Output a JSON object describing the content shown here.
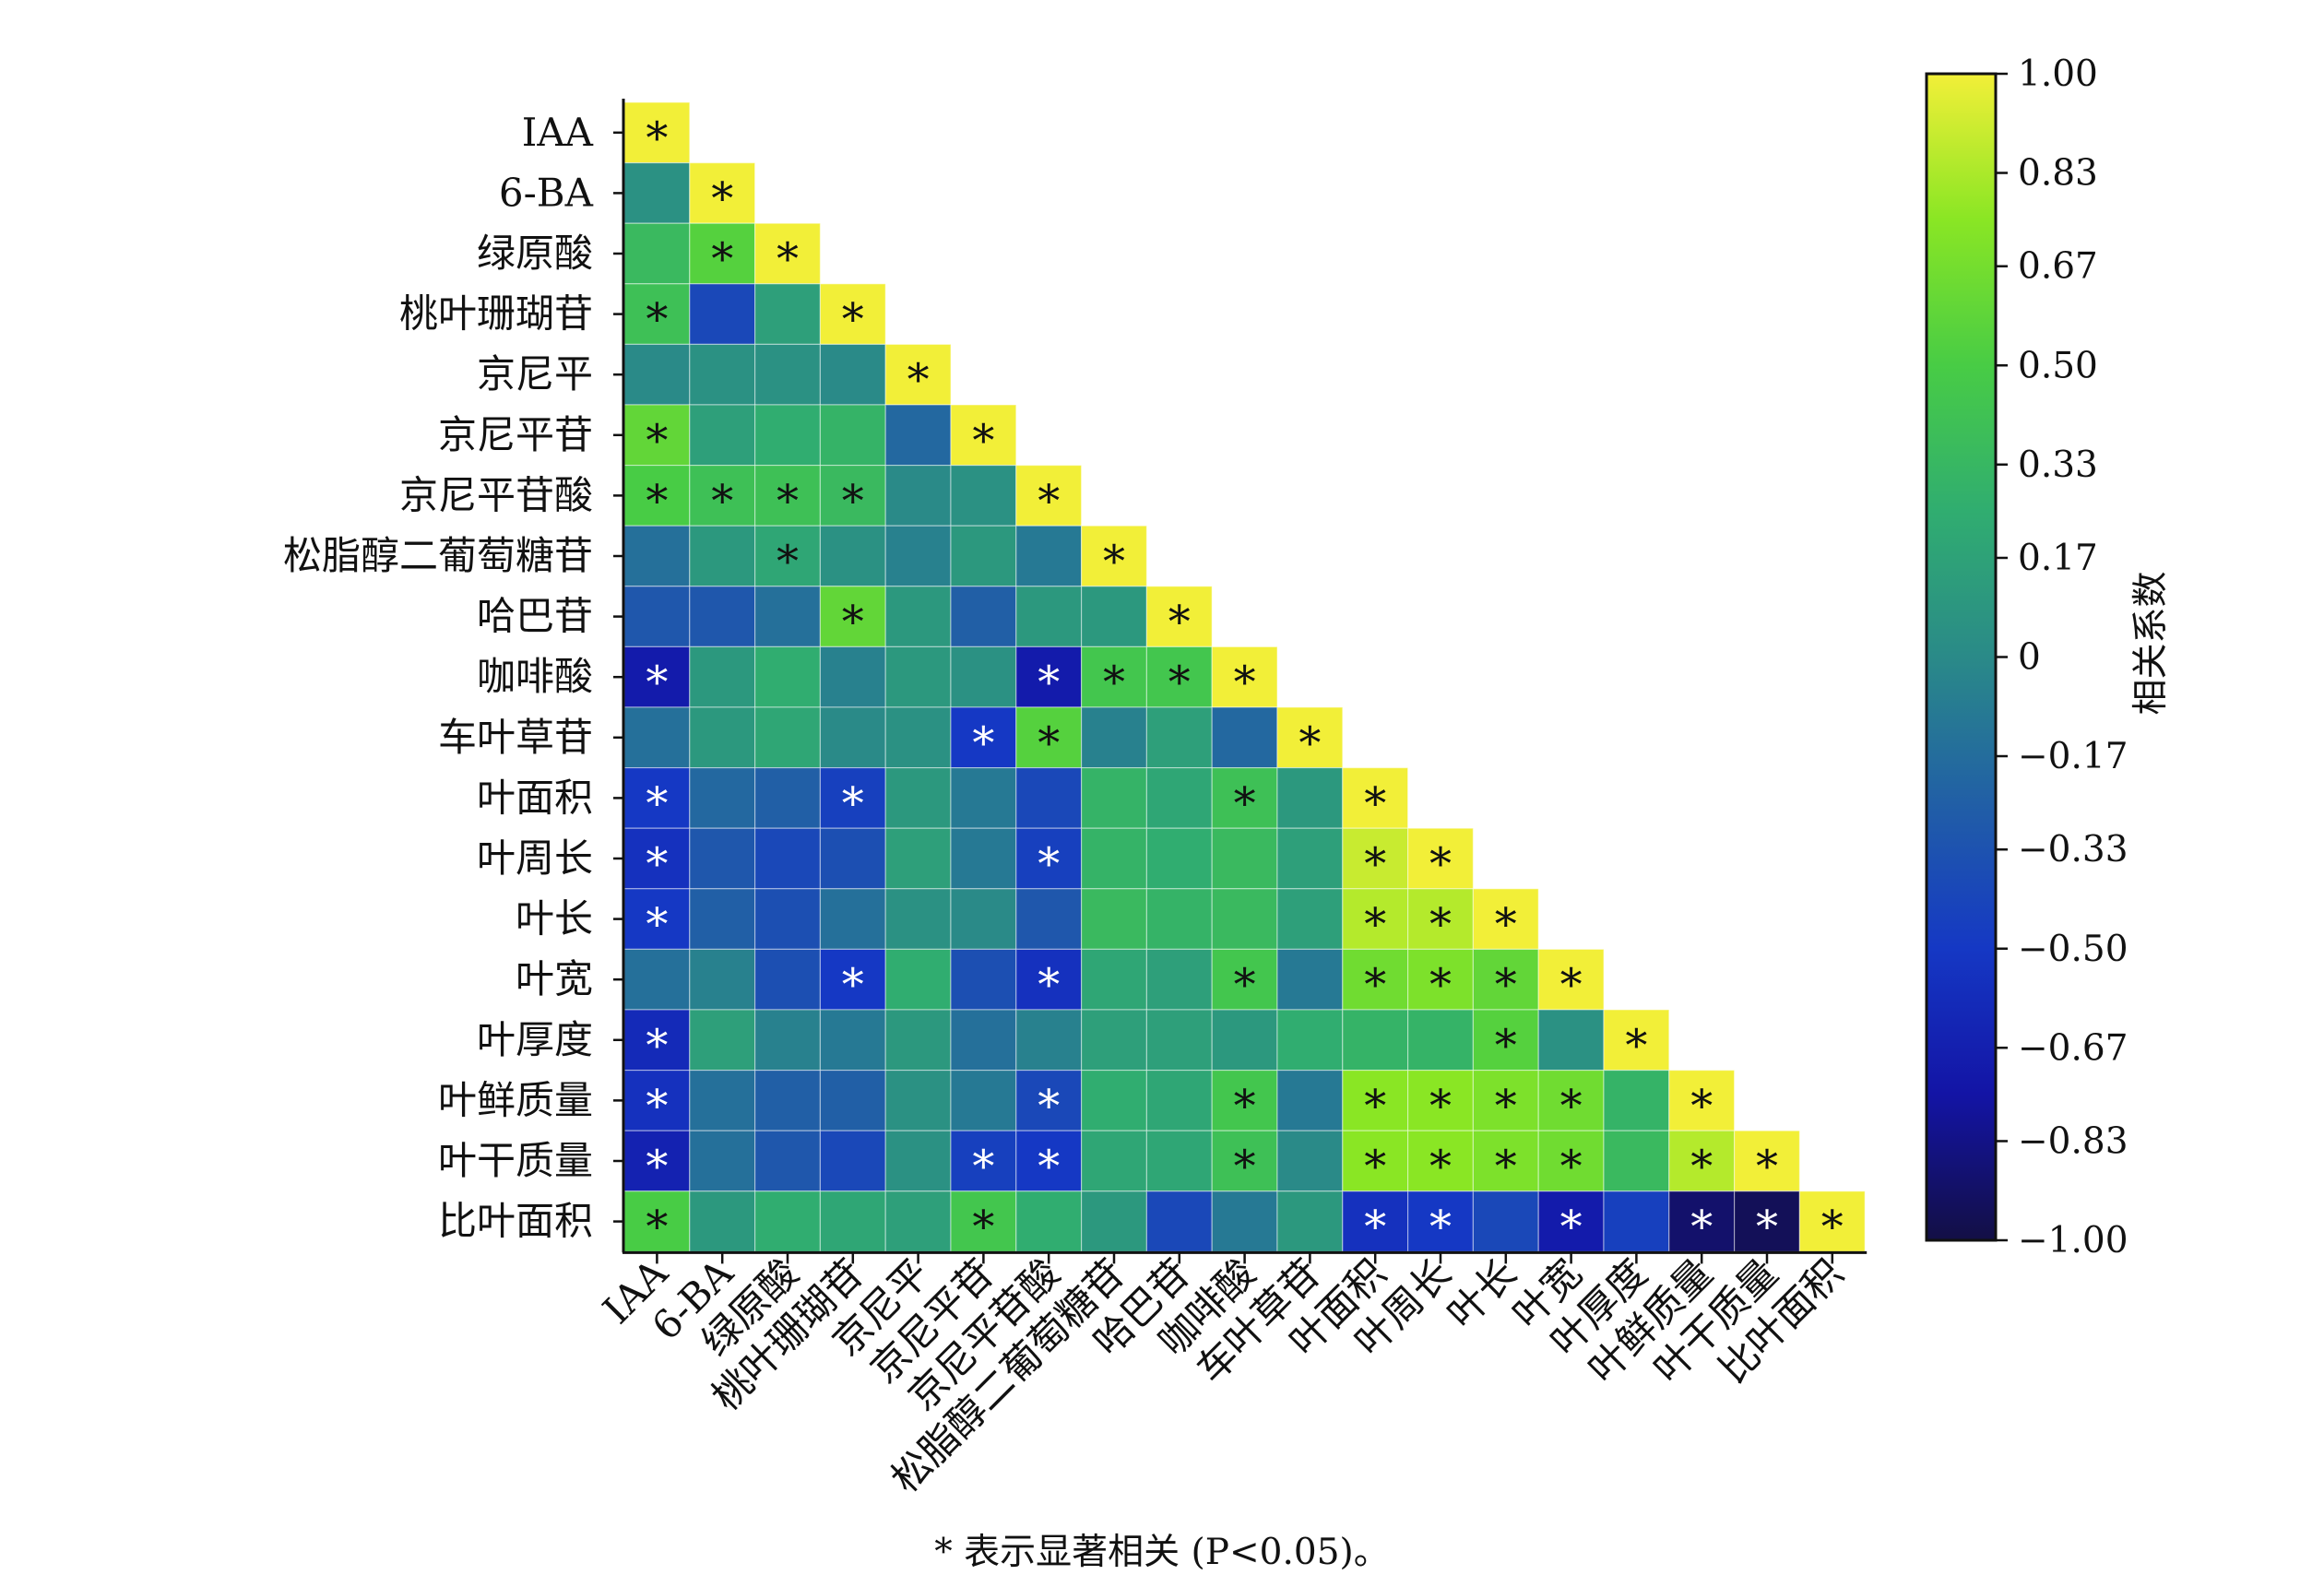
{
  "chart_data": {
    "type": "heatmap",
    "title": "",
    "variables": [
      "IAA",
      "6-BA",
      "绿原酸",
      "桃叶珊瑚苷",
      "京尼平",
      "京尼平苷",
      "京尼平苷酸",
      "松脂醇二葡萄糖苷",
      "哈巴苷",
      "咖啡酸",
      "车叶草苷",
      "叶面积",
      "叶周长",
      "叶长",
      "叶宽",
      "叶厚度",
      "叶鲜质量",
      "叶干质量",
      "比叶面积"
    ],
    "matrix": [
      [
        1.0
      ],
      [
        0.05,
        1.0
      ],
      [
        0.35,
        0.55,
        1.0
      ],
      [
        0.4,
        -0.4,
        0.15,
        1.0
      ],
      [
        0.0,
        0.05,
        0.05,
        0.0,
        1.0
      ],
      [
        0.6,
        0.15,
        0.25,
        0.3,
        -0.2,
        1.0
      ],
      [
        0.5,
        0.4,
        0.4,
        0.35,
        0.0,
        0.05,
        1.0
      ],
      [
        -0.15,
        0.1,
        0.2,
        0.05,
        -0.05,
        0.1,
        -0.1,
        1.0
      ],
      [
        -0.3,
        -0.3,
        -0.15,
        0.6,
        0.1,
        -0.25,
        0.1,
        0.1,
        1.0
      ],
      [
        -0.7,
        0.1,
        0.25,
        -0.05,
        0.1,
        0.05,
        -0.7,
        0.45,
        0.45,
        1.0
      ],
      [
        -0.15,
        0.1,
        0.2,
        0.0,
        0.05,
        -0.5,
        0.55,
        -0.05,
        0.15,
        -0.2,
        1.0
      ],
      [
        -0.5,
        -0.2,
        -0.25,
        -0.45,
        0.1,
        -0.1,
        -0.4,
        0.3,
        0.2,
        0.4,
        0.1,
        1.0
      ],
      [
        -0.55,
        -0.3,
        -0.4,
        -0.35,
        0.15,
        -0.1,
        -0.45,
        0.3,
        0.25,
        0.35,
        0.15,
        0.9,
        1.0
      ],
      [
        -0.5,
        -0.25,
        -0.35,
        -0.15,
        0.05,
        0.0,
        -0.3,
        0.35,
        0.3,
        0.35,
        0.15,
        0.85,
        0.85,
        1.0
      ],
      [
        -0.15,
        -0.05,
        -0.35,
        -0.5,
        0.25,
        -0.35,
        -0.55,
        0.2,
        0.15,
        0.45,
        -0.1,
        0.65,
        0.7,
        0.6,
        1.0
      ],
      [
        -0.6,
        0.15,
        -0.05,
        -0.1,
        0.1,
        -0.15,
        -0.05,
        0.15,
        0.15,
        0.1,
        0.25,
        0.3,
        0.3,
        0.55,
        0.05,
        1.0
      ],
      [
        -0.55,
        -0.15,
        -0.25,
        -0.25,
        0.05,
        -0.1,
        -0.4,
        0.25,
        0.2,
        0.45,
        -0.1,
        0.75,
        0.75,
        0.7,
        0.65,
        0.3,
        1.0
      ],
      [
        -0.65,
        -0.15,
        -0.3,
        -0.4,
        0.05,
        -0.45,
        -0.5,
        0.2,
        0.2,
        0.4,
        0.0,
        0.75,
        0.75,
        0.7,
        0.65,
        0.35,
        0.85,
        1.0
      ],
      [
        0.5,
        0.1,
        0.25,
        0.2,
        0.15,
        0.45,
        0.25,
        0.1,
        -0.4,
        -0.1,
        0.1,
        -0.55,
        -0.5,
        -0.4,
        -0.7,
        -0.45,
        -0.9,
        -0.95,
        1.0
      ]
    ],
    "significant": [
      [
        1
      ],
      [
        0,
        1
      ],
      [
        0,
        1,
        1
      ],
      [
        1,
        0,
        0,
        1
      ],
      [
        0,
        0,
        0,
        0,
        1
      ],
      [
        1,
        0,
        0,
        0,
        0,
        1
      ],
      [
        1,
        1,
        1,
        1,
        0,
        0,
        1
      ],
      [
        0,
        0,
        1,
        0,
        0,
        0,
        0,
        1
      ],
      [
        0,
        0,
        0,
        1,
        0,
        0,
        0,
        0,
        1
      ],
      [
        1,
        0,
        0,
        0,
        0,
        0,
        1,
        1,
        1,
        1
      ],
      [
        0,
        0,
        0,
        0,
        0,
        1,
        1,
        0,
        0,
        0,
        1
      ],
      [
        1,
        0,
        0,
        1,
        0,
        0,
        0,
        0,
        0,
        1,
        0,
        1
      ],
      [
        1,
        0,
        0,
        0,
        0,
        0,
        1,
        0,
        0,
        0,
        0,
        1,
        1
      ],
      [
        1,
        0,
        0,
        0,
        0,
        0,
        0,
        0,
        0,
        0,
        0,
        1,
        1,
        1
      ],
      [
        0,
        0,
        0,
        1,
        0,
        0,
        1,
        0,
        0,
        1,
        0,
        1,
        1,
        1,
        1
      ],
      [
        1,
        0,
        0,
        0,
        0,
        0,
        0,
        0,
        0,
        0,
        0,
        0,
        0,
        1,
        0,
        1
      ],
      [
        1,
        0,
        0,
        0,
        0,
        0,
        1,
        0,
        0,
        1,
        0,
        1,
        1,
        1,
        1,
        0,
        1
      ],
      [
        1,
        0,
        0,
        0,
        0,
        1,
        1,
        0,
        0,
        1,
        0,
        1,
        1,
        1,
        1,
        0,
        1,
        1
      ],
      [
        1,
        0,
        0,
        0,
        0,
        1,
        0,
        0,
        0,
        0,
        0,
        1,
        1,
        0,
        1,
        0,
        1,
        1,
        1
      ]
    ],
    "significance_mark": "*",
    "value_range": [
      -1.0,
      1.0
    ],
    "colorbar": {
      "label": "相关系数",
      "tick_values": [
        1.0,
        0.83,
        0.67,
        0.5,
        0.33,
        0.17,
        0,
        -0.17,
        -0.33,
        -0.5,
        -0.67,
        -0.83,
        -1.0
      ],
      "tick_labels": [
        "1.00",
        "0.83",
        "0.67",
        "0.50",
        "0.33",
        "0.17",
        "0",
        "−0.17",
        "−0.33",
        "−0.50",
        "−0.67",
        "−0.83",
        "−1.00"
      ],
      "colors": [
        "#130f45",
        "#1314a5",
        "#1538c4",
        "#215fa6",
        "#2a8a88",
        "#30ad70",
        "#48cc45",
        "#8ae624",
        "#f2ef38"
      ]
    },
    "legend": "none",
    "grid": false
  },
  "footnote": "* 表示显著相关 (P<0.05)。"
}
